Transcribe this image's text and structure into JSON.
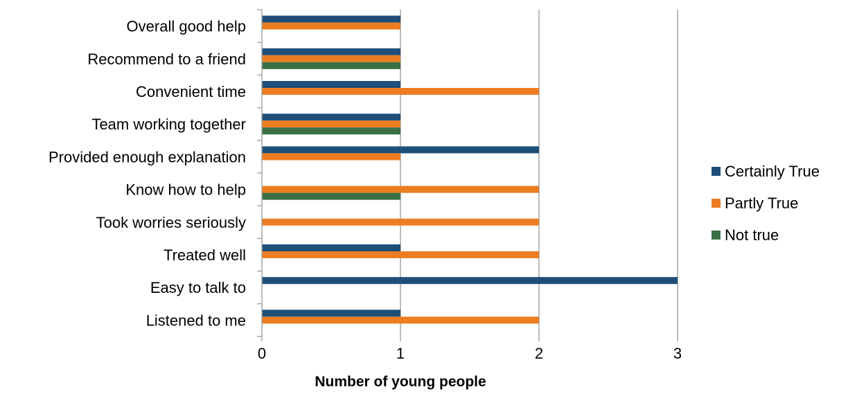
{
  "chart_data": {
    "type": "bar",
    "orientation": "horizontal",
    "categories": [
      "Overall good help",
      "Recommend to a friend",
      "Convenient time",
      "Team working together",
      "Provided enough explanation",
      "Know how to help",
      "Took worries seriously",
      "Treated well",
      "Easy to talk to",
      "Listened to me"
    ],
    "series": [
      {
        "name": "Certainly True",
        "color": "#1f4e79",
        "values": [
          1,
          1,
          1,
          1,
          2,
          0,
          0,
          1,
          3,
          1
        ]
      },
      {
        "name": "Partly True",
        "color": "#ed7d22",
        "values": [
          1,
          1,
          2,
          1,
          1,
          2,
          2,
          2,
          0,
          2
        ]
      },
      {
        "name": "Not true",
        "color": "#3a7044",
        "values": [
          0,
          1,
          0,
          1,
          0,
          1,
          0,
          0,
          0,
          0
        ]
      }
    ],
    "xlabel": "Number of young people",
    "xlim": [
      0,
      3
    ],
    "xticks": [
      "0",
      "1",
      "2",
      "3"
    ],
    "grid": true,
    "legend_position": "right"
  }
}
